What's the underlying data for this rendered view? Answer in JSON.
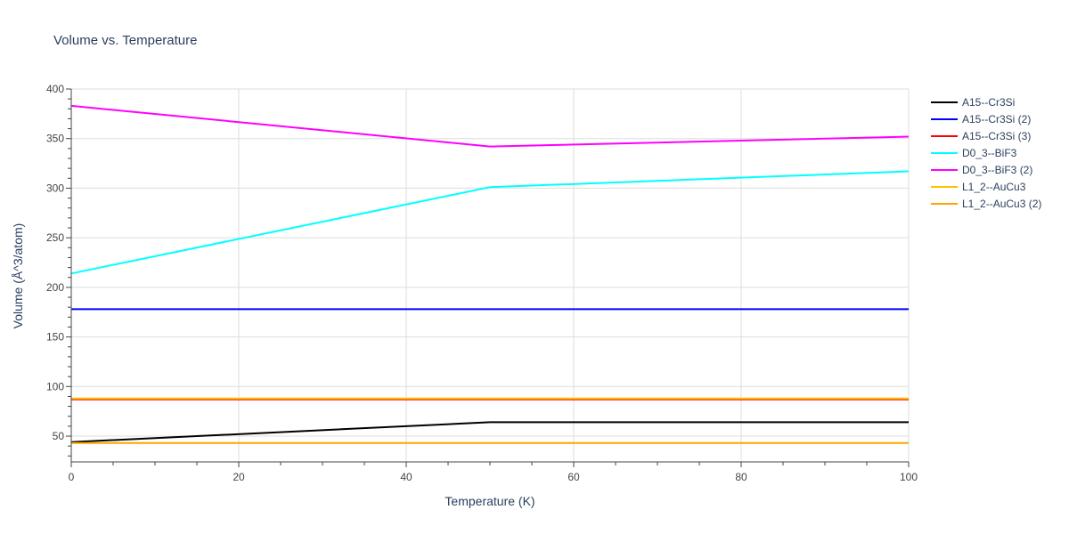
{
  "chart_data": {
    "type": "line",
    "title": "Volume vs. Temperature",
    "xlabel": "Temperature (K)",
    "ylabel": "Volume (Å^3/atom)",
    "xlim": [
      0,
      100
    ],
    "ylim": [
      24,
      400
    ],
    "xticks": [
      0,
      20,
      40,
      60,
      80,
      100
    ],
    "yticks": [
      50,
      100,
      150,
      200,
      250,
      300,
      350,
      400
    ],
    "grid": true,
    "legend_position": "top-right",
    "series": [
      {
        "name": "A15--Cr3Si",
        "color": "#000000",
        "x": [
          0,
          50,
          100
        ],
        "y": [
          44,
          64,
          64
        ]
      },
      {
        "name": "A15--Cr3Si (2)",
        "color": "#0000ff",
        "x": [
          0,
          50,
          100
        ],
        "y": [
          178,
          178,
          178
        ]
      },
      {
        "name": "A15--Cr3Si (3)",
        "color": "#ff0000",
        "x": [
          0,
          50,
          100
        ],
        "y": [
          87,
          87,
          87
        ]
      },
      {
        "name": "D0_3--BiF3",
        "color": "#00ffff",
        "x": [
          0,
          50,
          100
        ],
        "y": [
          214,
          301,
          317
        ]
      },
      {
        "name": "D0_3--BiF3 (2)",
        "color": "#ff00ff",
        "x": [
          0,
          50,
          100
        ],
        "y": [
          383,
          342,
          352
        ]
      },
      {
        "name": "L1_2--AuCu3",
        "color": "#ffc000",
        "x": [
          0,
          50,
          100
        ],
        "y": [
          88,
          88,
          88
        ]
      },
      {
        "name": "L1_2--AuCu3 (2)",
        "color": "#ffa500",
        "x": [
          0,
          50,
          100
        ],
        "y": [
          43,
          43,
          43
        ]
      }
    ]
  }
}
